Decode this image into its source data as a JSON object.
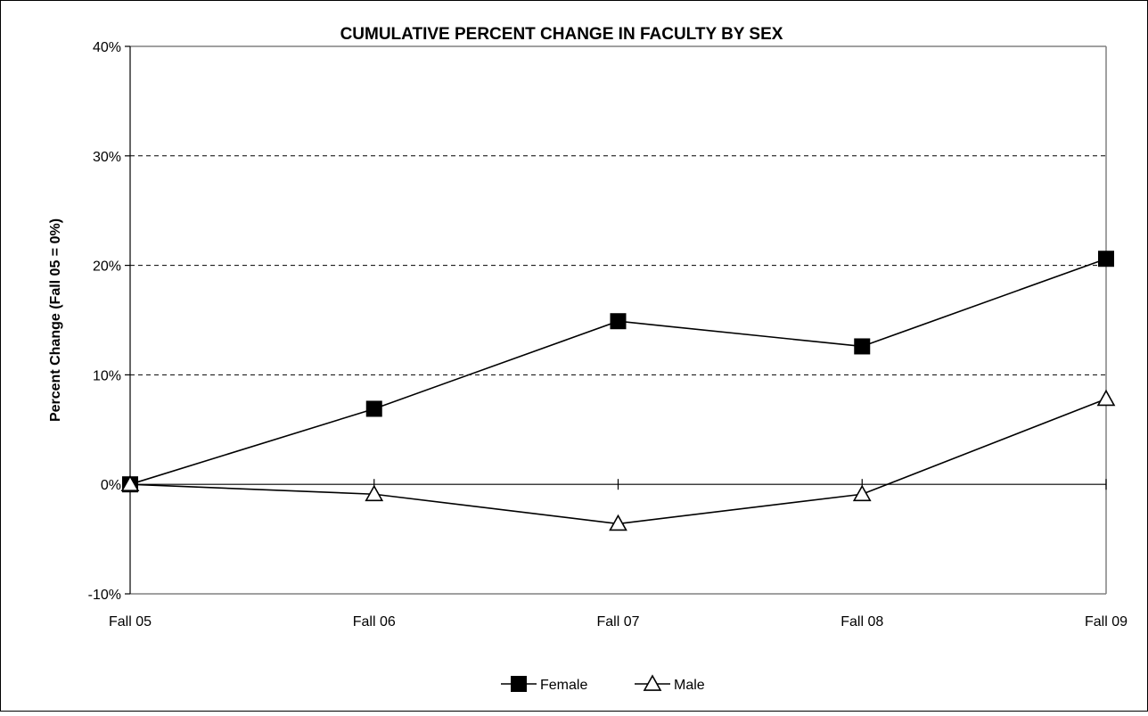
{
  "chart_data": {
    "type": "line",
    "title": "CUMULATIVE PERCENT CHANGE IN FACULTY BY SEX",
    "xlabel": "",
    "ylabel": "Percent Change (Fall 05 = 0%)",
    "categories": [
      "Fall 05",
      "Fall 06",
      "Fall 07",
      "Fall 08",
      "Fall 09"
    ],
    "series": [
      {
        "name": "Female",
        "marker": "filled-square",
        "values": [
          0,
          6.9,
          14.9,
          12.6,
          20.6
        ]
      },
      {
        "name": "Male",
        "marker": "hollow-triangle",
        "values": [
          0,
          -0.9,
          -3.6,
          -0.9,
          7.8
        ]
      }
    ],
    "ylim": [
      -10,
      40
    ],
    "yticks": [
      -10,
      0,
      10,
      20,
      30,
      40
    ],
    "ytick_labels": [
      "-10%",
      "0%",
      "10%",
      "20%",
      "30%",
      "40%"
    ],
    "grid": "dashed horizontal at 10%, 20%, 30%",
    "legend_position": "bottom-center",
    "colors": {
      "line": "#000000",
      "grid": "#000000",
      "background": "#ffffff"
    }
  }
}
